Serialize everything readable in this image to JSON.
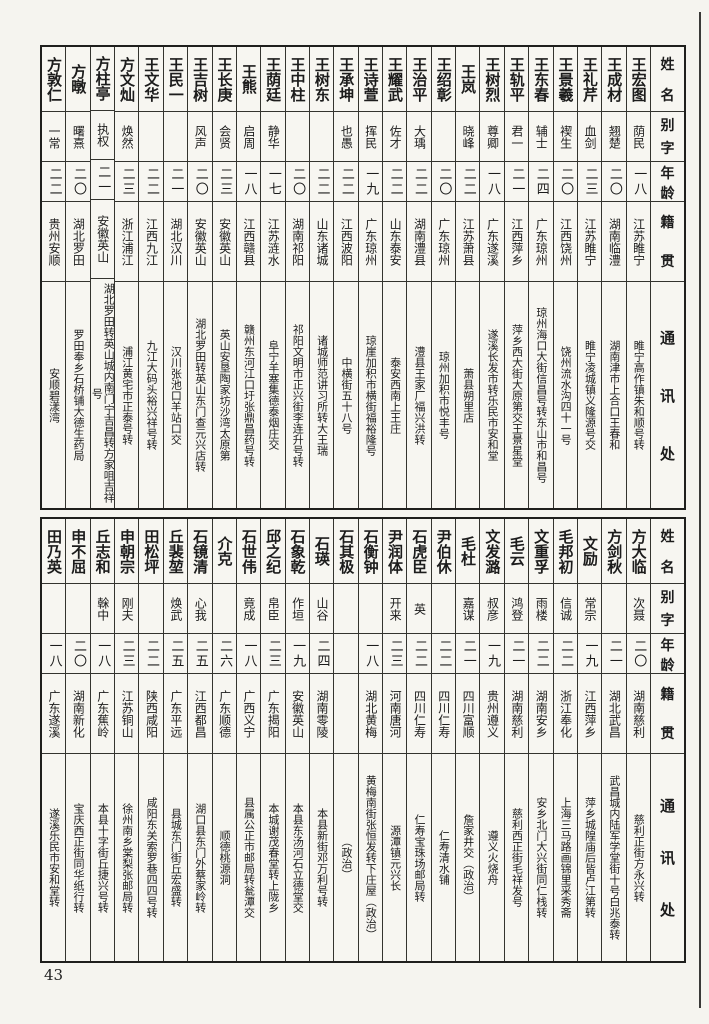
{
  "page_number": "43",
  "headers": {
    "name": "姓名",
    "alias": "别字",
    "age": "年龄",
    "origin": "籍贯",
    "address": "通讯处"
  },
  "tables": [
    {
      "entries": [
        {
          "name": "王宏图",
          "alias": "荫民",
          "age": "一八",
          "origin": "江苏睢宁",
          "address": "睢宁高作镇朱和顺号转"
        },
        {
          "name": "王成材",
          "alias": "翘楚",
          "age": "二〇",
          "origin": "湖南临澧",
          "address": "湖南津市上合口王春和"
        },
        {
          "name": "王礼芹",
          "alias": "血剑",
          "age": "二三",
          "origin": "江苏睢宁",
          "address": "睢宁凌城镇义隆源号交"
        },
        {
          "name": "王景羲",
          "alias": "褉生",
          "age": "二〇",
          "origin": "江西饶州",
          "address": "饶州流水沟四十一号"
        },
        {
          "name": "王东春",
          "alias": "辅士",
          "age": "二四",
          "origin": "广东琼州",
          "address": "琼州海口大街信昌号转东山市和昌号"
        },
        {
          "name": "王轨平",
          "alias": "君一",
          "age": "二一",
          "origin": "江西萍乡",
          "address": "萍乡西大街大原第交王景星堂"
        },
        {
          "name": "王树烈",
          "alias": "尊卿",
          "age": "一八",
          "origin": "广东遂溪",
          "address": "遂溪长发市转乐民市安和堂"
        },
        {
          "name": "王岚",
          "alias": "晓峰",
          "age": "二二",
          "origin": "江苏萧县",
          "address": "萧县朔里店"
        },
        {
          "name": "王绍彰",
          "alias": "",
          "age": "二〇",
          "origin": "广东琼州",
          "address": "琼州加积市悦丰号"
        },
        {
          "name": "王治平",
          "alias": "大瑀",
          "age": "二二",
          "origin": "湖南澧县",
          "address": "澧县王家厂福兴洪转"
        },
        {
          "name": "王耀武",
          "alias": "佐才",
          "age": "二二",
          "origin": "山东泰安",
          "address": "泰安西南上王庄"
        },
        {
          "name": "王诗萱",
          "alias": "挥民",
          "age": "一九",
          "origin": "广东琼州",
          "address": "琼崖加积市横街福裕隆号"
        },
        {
          "name": "王承坤",
          "alias": "也愚",
          "age": "二二",
          "origin": "江西波阳",
          "address": "中横街五十八号"
        },
        {
          "name": "王树东",
          "alias": "",
          "age": "二二",
          "origin": "山东诸城",
          "address": "诸城师范讲习所转大王瑞"
        },
        {
          "name": "王中柱",
          "alias": "",
          "age": "二〇",
          "origin": "湖南祁阳",
          "address": "祁阳文明市正兴街李连升号转"
        },
        {
          "name": "王荫廷",
          "alias": "静华",
          "age": "一七",
          "origin": "江苏涟水",
          "address": "阜宁羊塞集德泰烟庄交"
        },
        {
          "name": "王熊",
          "alias": "启周",
          "age": "一八",
          "origin": "江西赣县",
          "address": "赣州东河江口圩张鼎昌药号转"
        },
        {
          "name": "王长庚",
          "alias": "会贤",
          "age": "二三",
          "origin": "安徽英山",
          "address": "英山安垦陶家坊沙湾太原第"
        },
        {
          "name": "王吉树",
          "alias": "风声",
          "age": "二〇",
          "origin": "安徽英山",
          "address": "湖北罗田转英山东门查元兴店转"
        },
        {
          "name": "王民一",
          "alias": "",
          "age": "二一",
          "origin": "湖北汉川",
          "address": "汉川张池口羊站口交"
        },
        {
          "name": "王文华",
          "alias": "",
          "age": "二二",
          "origin": "江西九江",
          "address": "九江大码头裕兴祥号转"
        },
        {
          "name": "方文灿",
          "alias": "焕然",
          "age": "二三",
          "origin": "浙江浦江",
          "address": "浦江黄宅市正泰号转"
        },
        {
          "name": "方柱亭",
          "alias": "执权",
          "age": "二一",
          "origin": "安徽英山",
          "address": "湖北罗田转英山城内南门宁吉昌转方家咀吉祥号"
        },
        {
          "name": "方暾",
          "alias": "曙熹",
          "age": "二〇",
          "origin": "湖北罗田",
          "address": "罗田奉乡石桥铺大德生药局"
        },
        {
          "name": "方敦仁",
          "alias": "一常",
          "age": "二二",
          "origin": "贵州安顺",
          "address": "安顺碧漾湾"
        }
      ]
    },
    {
      "entries": [
        {
          "name": "方大临",
          "alias": "次聂",
          "age": "二〇",
          "origin": "湖南慈利",
          "address": "慈利正街方永兴转"
        },
        {
          "name": "方剑秋",
          "alias": "",
          "age": "二一",
          "origin": "湖北武昌",
          "address": "武昌城内陆军学堂街十号白兆泰转"
        },
        {
          "name": "文励",
          "alias": "常宗",
          "age": "一九",
          "origin": "江西萍乡",
          "address": "萍乡城隍庙后皆卢江第转"
        },
        {
          "name": "毛邦初",
          "alias": "信诚",
          "age": "二二",
          "origin": "浙江奉化",
          "address": "上海三马路画锦里采秀斋"
        },
        {
          "name": "文重孚",
          "alias": "雨楼",
          "age": "二二",
          "origin": "湖南安乡",
          "address": "安乡北门大兴街同仁栈转"
        },
        {
          "name": "毛云",
          "alias": "鸿登",
          "age": "二一",
          "origin": "湖南慈利",
          "address": "慈利西正街毛祥发号"
        },
        {
          "name": "文发潞",
          "alias": "叔彦",
          "age": "一九",
          "origin": "贵州遵义",
          "address": "遵义火烧舟"
        },
        {
          "name": "毛杜",
          "alias": "嘉谋",
          "age": "二一",
          "origin": "四川富顺",
          "address": "詹家井交（政治）"
        },
        {
          "name": "尹伯休",
          "alias": "",
          "age": "二二",
          "origin": "四川仁寿",
          "address": "仁寿清水铺"
        },
        {
          "name": "石虎臣",
          "alias": "英",
          "age": "二二",
          "origin": "四川仁寿",
          "address": "仁寿宝珠场邮局转"
        },
        {
          "name": "尹润体",
          "alias": "开来",
          "age": "二三",
          "origin": "河南唐河",
          "address": "源潭镇元兴长"
        },
        {
          "name": "石衡钟",
          "alias": "",
          "age": "一八",
          "origin": "湖北黄梅",
          "address": "黄梅南街张恒发转下庄屋（政治）"
        },
        {
          "name": "石其极",
          "alias": "",
          "age": "",
          "origin": "",
          "address": "（政治）"
        },
        {
          "name": "石瑛",
          "alias": "山谷",
          "age": "二四",
          "origin": "湖南零陵",
          "address": "本县新街邓万利号转"
        },
        {
          "name": "石象乾",
          "alias": "作垣",
          "age": "一九",
          "origin": "安徽英山",
          "address": "本县东汤河石立德堂交"
        },
        {
          "name": "邱之纪",
          "alias": "帛臣",
          "age": "二三",
          "origin": "广东揭阳",
          "address": "本城谢茂春堂转上陇乡"
        },
        {
          "name": "石世伟",
          "alias": "竟成",
          "age": "一八",
          "origin": "广西义宁",
          "address": "县属公正市邮局转瓮潭交"
        },
        {
          "name": "介克",
          "alias": "",
          "age": "二六",
          "origin": "广东顺德",
          "address": "顺德桃源洞"
        },
        {
          "name": "石镜清",
          "alias": "心我",
          "age": "二五",
          "origin": "江西都昌",
          "address": "湖口县东门外蔡家岭转"
        },
        {
          "name": "丘裴堃",
          "alias": "焕武",
          "age": "二五",
          "origin": "广东平远",
          "address": "县城东门街丘宏盛转"
        },
        {
          "name": "田松坪",
          "alias": "",
          "age": "二二",
          "origin": "陕西咸阳",
          "address": "咸阳东关索罗巷四四号转"
        },
        {
          "name": "申朝宗",
          "alias": "刚夫",
          "age": "二三",
          "origin": "江苏铜山",
          "address": "徐州南乡棠梨张邮局转"
        },
        {
          "name": "丘志和",
          "alias": "榦中",
          "age": "一八",
          "origin": "广东蕉岭",
          "address": "本县十字街丘捷兴号转"
        },
        {
          "name": "申不屈",
          "alias": "",
          "age": "二〇",
          "origin": "湖南新化",
          "address": "宝庆西正街同华纸行转"
        },
        {
          "name": "田乃英",
          "alias": "",
          "age": "一八",
          "origin": "广东遂溪",
          "address": "遂溪乐民市安和堂转"
        }
      ]
    }
  ]
}
